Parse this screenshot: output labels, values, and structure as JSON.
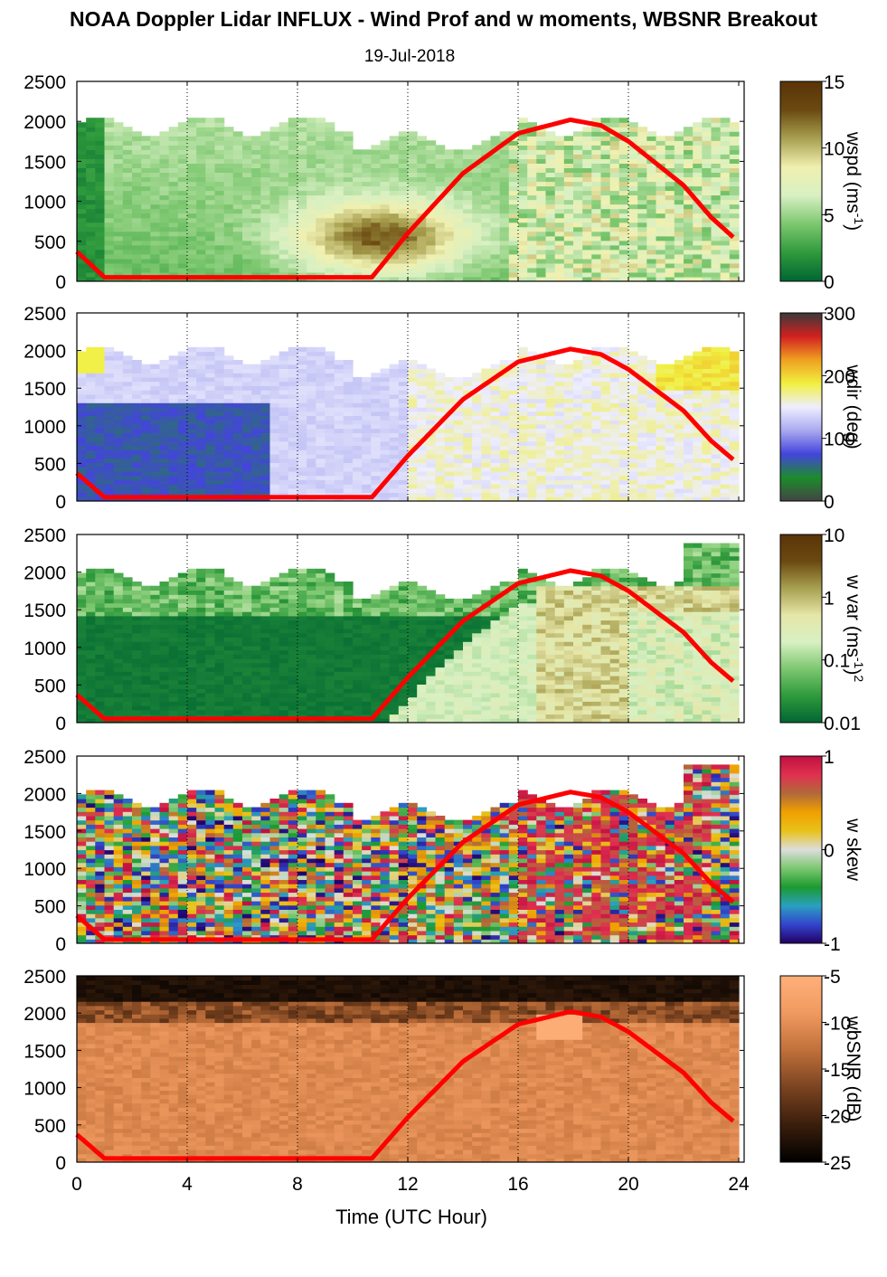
{
  "title": "NOAA Doppler Lidar INFLUX - Wind Prof and w moments, WBSNR Breakout",
  "subtitle": "19-Jul-2018",
  "colors": {
    "curve": "#ff0000",
    "frame": "#000000"
  },
  "chart_data": {
    "type": "heatmap",
    "xlabel": "Time (UTC Hour)",
    "x_ticks": [
      "0",
      "4",
      "8",
      "12",
      "16",
      "20",
      "24"
    ],
    "xlim": [
      0,
      24
    ],
    "ylim": [
      0,
      2500
    ],
    "y_ticks": [
      "0",
      "500",
      "1000",
      "1500",
      "2000",
      "2500"
    ],
    "grid": "dotted vertical lines at 4, 8, 12, 16, 20",
    "overlay_curve": {
      "description": "red line repeated on every panel",
      "points": [
        [
          0,
          370
        ],
        [
          1,
          50
        ],
        [
          10.7,
          50
        ],
        [
          12,
          600
        ],
        [
          14,
          1350
        ],
        [
          16,
          1850
        ],
        [
          17.9,
          2020
        ],
        [
          19,
          1950
        ],
        [
          20,
          1750
        ],
        [
          22,
          1200
        ],
        [
          23,
          800
        ],
        [
          23.9,
          520
        ]
      ]
    },
    "panels": [
      {
        "name": "wspd",
        "colorbar_label": "wspd (ms",
        "colorbar_sup": "-1",
        "colorbar_tail": ")",
        "cmap": [
          "#006633",
          "#2f9a3c",
          "#7cc76f",
          "#d8f0c3",
          "#f0f0b0",
          "#a8a050",
          "#6b4a10",
          "#5a3308"
        ],
        "ticks": [
          "0",
          "5",
          "10",
          "15"
        ],
        "range": [
          0,
          15
        ]
      },
      {
        "name": "wdir",
        "colorbar_label": "wdir (deg)",
        "colorbar_sup": "",
        "colorbar_tail": "",
        "cmap": [
          "#444444",
          "#1c8c2c",
          "#4444dd",
          "#a9a9f0",
          "#eeeeff",
          "#f0f040",
          "#f0a020",
          "#d22020",
          "#3a3a3a"
        ],
        "ticks": [
          "0",
          "100",
          "200",
          "300"
        ],
        "range": [
          0,
          360
        ]
      },
      {
        "name": "w var",
        "colorbar_label": "w var (ms",
        "colorbar_sup": "-1",
        "colorbar_tail": ")",
        "colorbar_sup2": "2",
        "cmap": [
          "#006633",
          "#2f9a3c",
          "#7cc76f",
          "#d8f0c3",
          "#e6e6a8",
          "#a8a050",
          "#6b4a10",
          "#5a3308"
        ],
        "ticks": [
          "0.01",
          "0.1",
          "1",
          "10"
        ],
        "range": [
          0.01,
          10
        ],
        "scale": "log"
      },
      {
        "name": "w skew",
        "colorbar_label": "w skew",
        "colorbar_sup": "",
        "colorbar_tail": "",
        "cmap": [
          "#220066",
          "#3344cc",
          "#2aa0c0",
          "#1c9a30",
          "#7cc76f",
          "#dddddd",
          "#e8c21a",
          "#f0a000",
          "#b06a3a",
          "#e03050",
          "#c01040"
        ],
        "ticks": [
          "-1",
          "0",
          "1"
        ],
        "range": [
          -1,
          1
        ]
      },
      {
        "name": "wbSNR",
        "colorbar_label": "wbSNR (dB)",
        "colorbar_sup": "",
        "colorbar_tail": "",
        "cmap": [
          "#000000",
          "#3a1e0c",
          "#7a4320",
          "#c0703a",
          "#f09a60",
          "#ffb07a"
        ],
        "ticks": [
          "-25",
          "-20",
          "-15",
          "-10",
          "-5"
        ],
        "range": [
          -25,
          -5
        ]
      }
    ]
  }
}
